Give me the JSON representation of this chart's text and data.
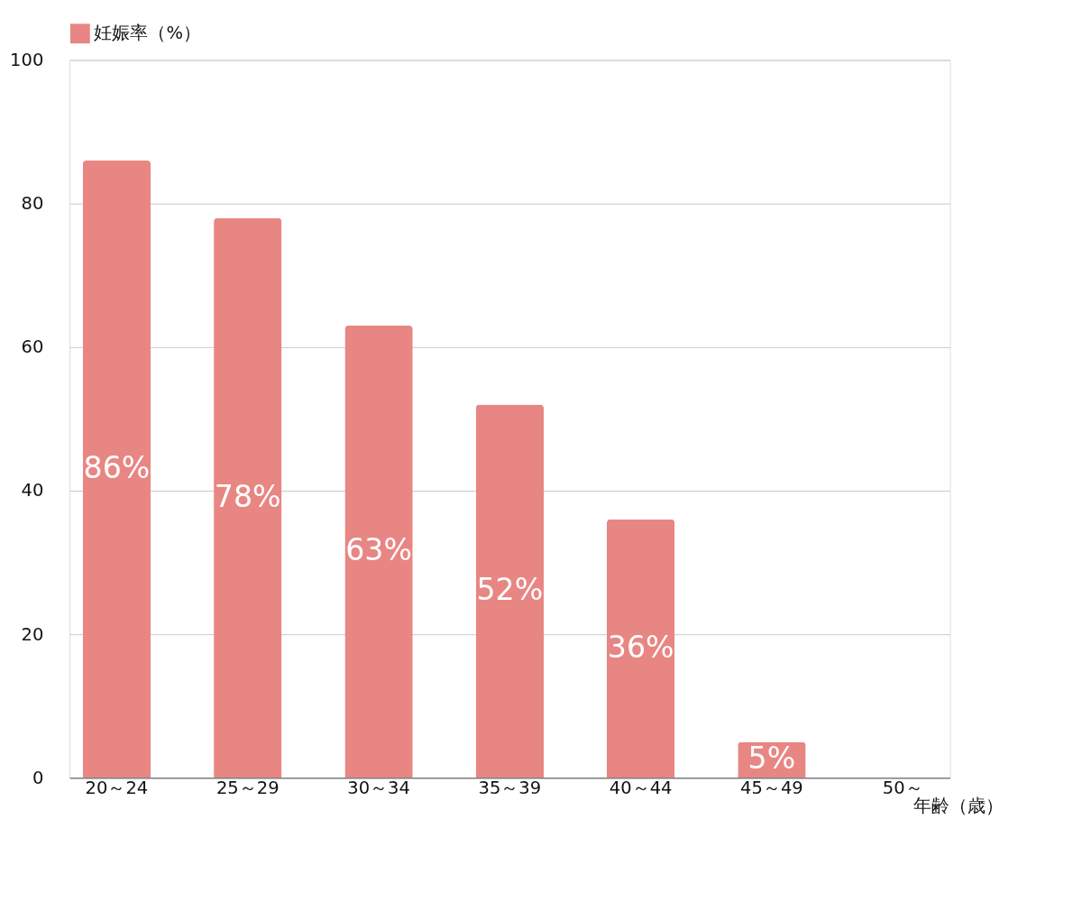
{
  "chart_data": {
    "type": "bar",
    "categories": [
      "20～24",
      "25～29",
      "30～34",
      "35～39",
      "40～44",
      "45～49",
      "50～"
    ],
    "series": [
      {
        "name": "妊娠率（%）",
        "color": "#e88683",
        "values": [
          86,
          78,
          63,
          52,
          36,
          5,
          null
        ]
      }
    ],
    "value_labels": [
      "86%",
      "78%",
      "63%",
      "52%",
      "36%",
      "5%",
      null
    ],
    "xlabel": "年齢（歳）",
    "ylim": [
      0,
      100
    ],
    "yticks": [
      0,
      20,
      40,
      60,
      80,
      100
    ],
    "grid": "y",
    "legend": "top"
  }
}
